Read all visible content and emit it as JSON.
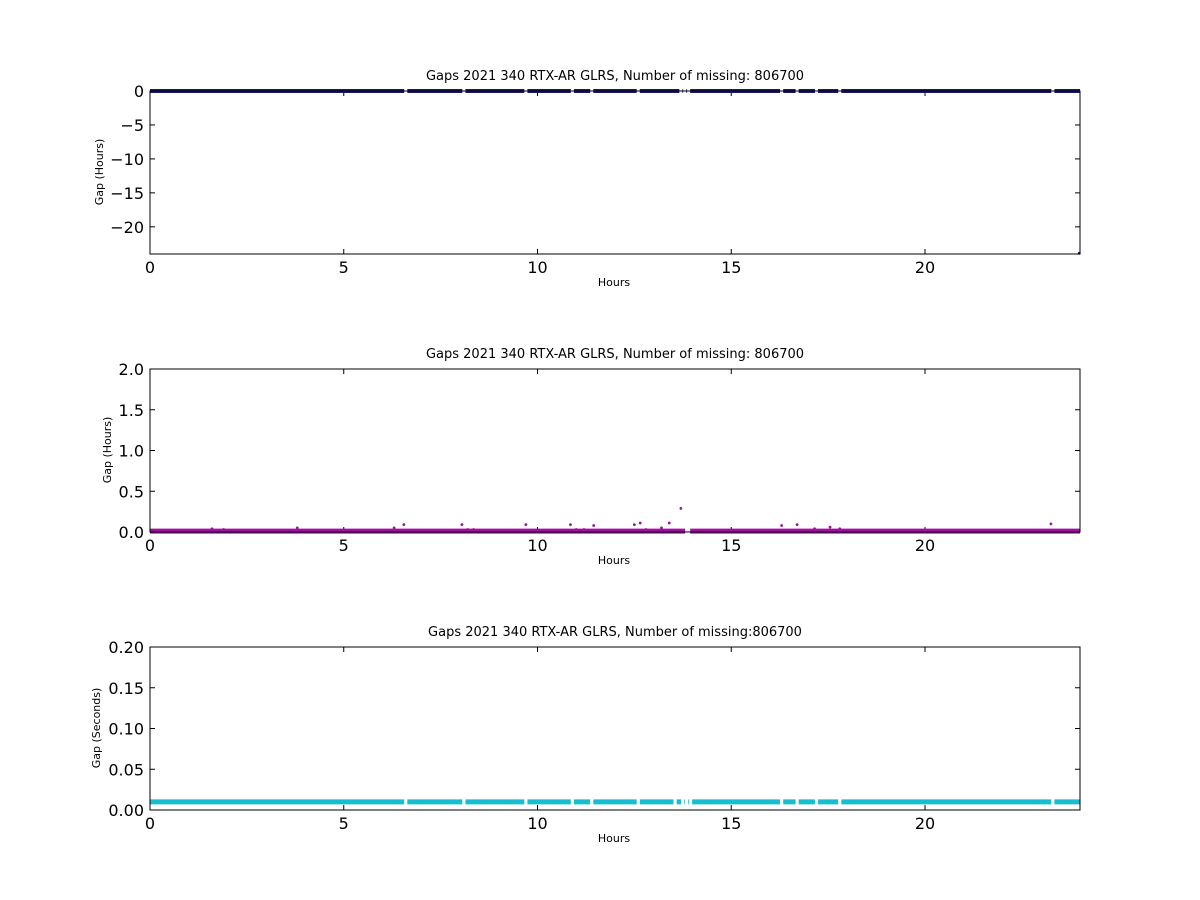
{
  "chart_data": [
    {
      "type": "scatter",
      "title": "Gaps 2021 340 RTX-AR  GLRS, Number of missing: 806700",
      "xlabel": "Hours",
      "ylabel": "Gap (Hours)",
      "xlim": [
        0,
        24
      ],
      "ylim": [
        -24,
        0
      ],
      "xticks": [
        "0",
        "5",
        "10",
        "15",
        "20"
      ],
      "yticks": [
        "0",
        "−5",
        "−10",
        "−15",
        "−20"
      ],
      "color": "#191970",
      "baseline": 0,
      "baseline_range": [
        0,
        24
      ],
      "points": [
        {
          "x": 23.98,
          "y": -23.9
        }
      ],
      "gaps_in_baseline": [
        6.6,
        8.1,
        9.7,
        10.9,
        11.4,
        12.6,
        13.7,
        13.8,
        13.9,
        16.3,
        16.7,
        17.2,
        17.8,
        23.3
      ]
    },
    {
      "type": "scatter",
      "title": "Gaps 2021 340 RTX-AR  GLRS, Number of missing: 806700",
      "xlabel": "Hours",
      "ylabel": "Gap (Hours)",
      "xlim": [
        0,
        24
      ],
      "ylim": [
        0,
        2.0
      ],
      "xticks": [
        "0",
        "5",
        "10",
        "15",
        "20"
      ],
      "yticks": [
        "0.0",
        "0.5",
        "1.0",
        "1.5",
        "2.0"
      ],
      "color": "#a010a0",
      "baseline": 0.01,
      "baseline_range": [
        0,
        24
      ],
      "points": [
        {
          "x": 1.6,
          "y": 0.04
        },
        {
          "x": 1.9,
          "y": 0.03
        },
        {
          "x": 3.8,
          "y": 0.05
        },
        {
          "x": 6.3,
          "y": 0.05
        },
        {
          "x": 6.55,
          "y": 0.09
        },
        {
          "x": 8.05,
          "y": 0.09
        },
        {
          "x": 8.2,
          "y": 0.03
        },
        {
          "x": 8.35,
          "y": 0.03
        },
        {
          "x": 9.7,
          "y": 0.09
        },
        {
          "x": 10.85,
          "y": 0.09
        },
        {
          "x": 11.0,
          "y": 0.03
        },
        {
          "x": 11.2,
          "y": 0.03
        },
        {
          "x": 11.45,
          "y": 0.08
        },
        {
          "x": 12.5,
          "y": 0.09
        },
        {
          "x": 12.65,
          "y": 0.11
        },
        {
          "x": 12.8,
          "y": 0.03
        },
        {
          "x": 13.2,
          "y": 0.05
        },
        {
          "x": 13.4,
          "y": 0.11
        },
        {
          "x": 13.7,
          "y": 0.29
        },
        {
          "x": 16.3,
          "y": 0.08
        },
        {
          "x": 16.7,
          "y": 0.09
        },
        {
          "x": 17.15,
          "y": 0.04
        },
        {
          "x": 17.55,
          "y": 0.06
        },
        {
          "x": 17.8,
          "y": 0.04
        },
        {
          "x": 23.25,
          "y": 0.1
        }
      ],
      "gaps_in_baseline": [
        13.85,
        13.9
      ]
    },
    {
      "type": "scatter",
      "title": "Gaps 2021 340 RTX-AR  GLRS, Number of missing:806700",
      "xlabel": "Hours",
      "ylabel": "Gap (Seconds)",
      "xlim": [
        0,
        24
      ],
      "ylim": [
        0,
        0.2
      ],
      "xticks": [
        "0",
        "5",
        "10",
        "15",
        "20"
      ],
      "yticks": [
        "0.00",
        "0.05",
        "0.10",
        "0.15",
        "0.20"
      ],
      "color": "#17becf",
      "baseline": 0.01,
      "baseline_range": [
        0,
        24
      ],
      "points": [],
      "gaps_in_baseline": [
        6.6,
        8.1,
        9.7,
        10.9,
        11.4,
        12.6,
        13.55,
        13.75,
        13.85,
        13.95,
        16.3,
        16.7,
        17.2,
        17.8,
        23.3
      ]
    }
  ]
}
